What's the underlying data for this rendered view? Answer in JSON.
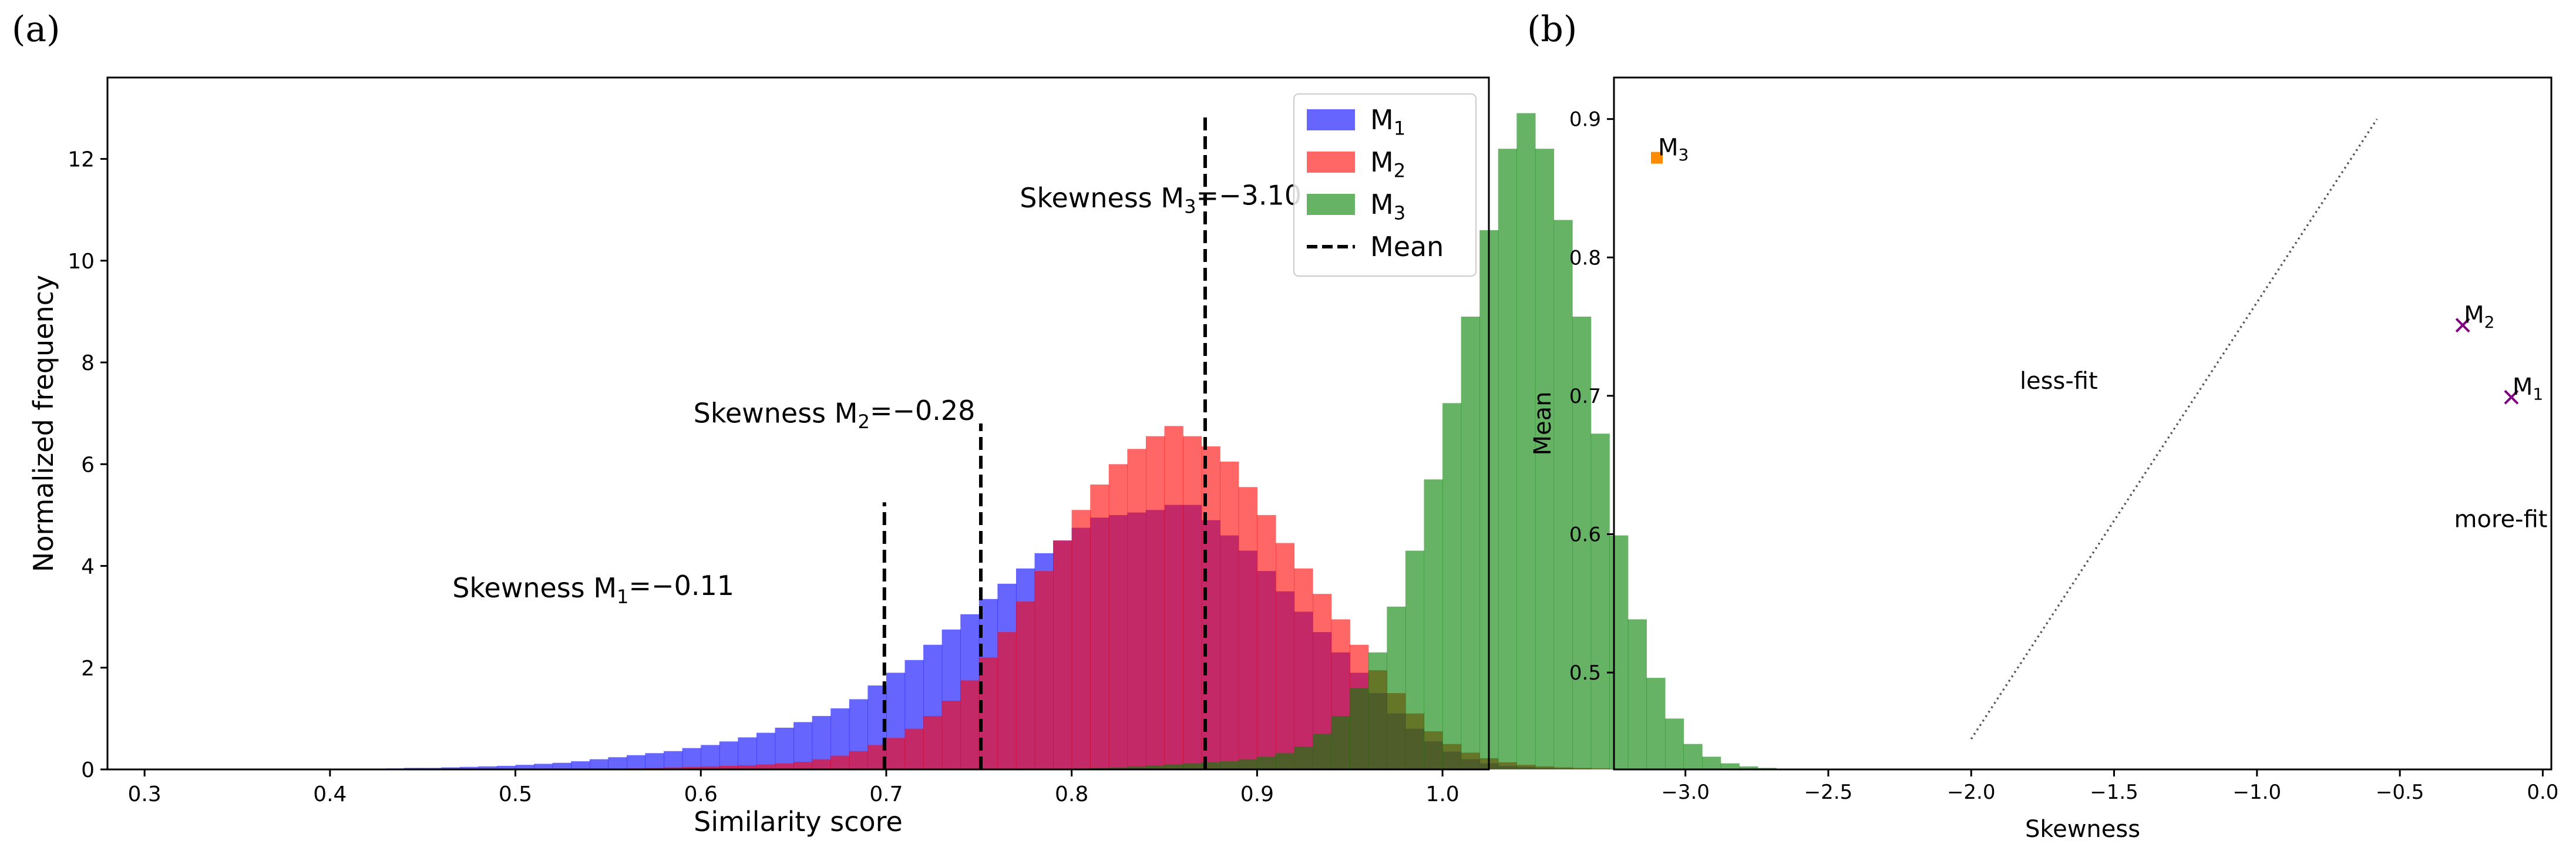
{
  "chart_data": [
    {
      "panel": "(a)",
      "type": "histogram",
      "xlabel": "Similarity score",
      "ylabel": "Normalized frequency",
      "xlim": [
        0.28,
        1.025
      ],
      "ylim": [
        0,
        13.6
      ],
      "xticks": [
        0.3,
        0.4,
        0.5,
        0.6,
        0.7,
        0.8,
        0.9,
        1.0
      ],
      "xtick_labels": [
        "0.3",
        "0.4",
        "0.5",
        "0.6",
        "0.7",
        "0.8",
        "0.9",
        "1.0"
      ],
      "yticks": [
        0,
        2,
        4,
        6,
        8,
        10,
        12
      ],
      "ytick_labels": [
        "0",
        "2",
        "4",
        "6",
        "8",
        "10",
        "12"
      ],
      "bin_width": 0.01,
      "bin_start": 0.3,
      "series": [
        {
          "name": "M1",
          "name_base": "M",
          "name_sub": "1",
          "color": "#0000ff",
          "opacity": 0.6,
          "values": [
            0,
            0,
            0,
            0,
            0,
            0,
            0,
            0,
            0,
            0,
            0,
            0,
            0,
            0.02,
            0.03,
            0.03,
            0.04,
            0.05,
            0.06,
            0.07,
            0.09,
            0.11,
            0.13,
            0.16,
            0.2,
            0.24,
            0.28,
            0.32,
            0.36,
            0.42,
            0.48,
            0.55,
            0.63,
            0.72,
            0.82,
            0.93,
            1.05,
            1.2,
            1.38,
            1.65,
            1.9,
            2.15,
            2.45,
            2.75,
            3.05,
            3.35,
            3.65,
            3.95,
            4.25,
            4.5,
            4.75,
            4.95,
            5.0,
            5.05,
            5.1,
            5.2,
            5.2,
            4.9,
            4.6,
            4.3,
            3.9,
            3.5,
            3.1,
            2.7,
            2.3,
            1.9,
            1.5,
            1.1,
            0.8,
            0.55,
            0.35,
            0.2,
            0.12,
            0.07,
            0.05,
            0.03,
            0.02,
            0.01,
            0,
            0,
            0,
            0,
            0,
            0,
            0,
            0,
            0,
            0,
            0,
            0,
            0,
            0,
            0,
            0,
            0,
            0,
            0,
            0,
            0,
            0
          ],
          "mean": 0.699,
          "mean_line_top": 5.25,
          "skewness_label": "Skewness M₁=−0.11",
          "skewness_base": "Skewness M",
          "skewness_sub": "1",
          "skewness_value": "=−0.11"
        },
        {
          "name": "M2",
          "name_base": "M",
          "name_sub": "2",
          "color": "#ff0000",
          "opacity": 0.6,
          "values": [
            0,
            0,
            0,
            0,
            0,
            0,
            0,
            0,
            0,
            0,
            0,
            0,
            0,
            0,
            0,
            0,
            0,
            0,
            0,
            0,
            0,
            0,
            0,
            0,
            0,
            0,
            0.02,
            0.03,
            0.04,
            0.05,
            0.06,
            0.07,
            0.08,
            0.1,
            0.12,
            0.15,
            0.2,
            0.27,
            0.36,
            0.48,
            0.62,
            0.8,
            1.05,
            1.35,
            1.75,
            2.2,
            2.7,
            3.3,
            3.9,
            4.5,
            5.1,
            5.6,
            6.0,
            6.3,
            6.55,
            6.75,
            6.55,
            6.35,
            6.05,
            5.55,
            5.0,
            4.45,
            3.95,
            3.45,
            2.95,
            2.45,
            1.95,
            1.5,
            1.1,
            0.75,
            0.5,
            0.33,
            0.22,
            0.14,
            0.09,
            0.06,
            0.04,
            0.03,
            0.02,
            0.01,
            0,
            0,
            0,
            0,
            0,
            0,
            0,
            0,
            0,
            0,
            0,
            0,
            0,
            0,
            0,
            0,
            0,
            0,
            0,
            0
          ],
          "mean": 0.751,
          "mean_line_top": 6.8,
          "skewness_label": "Skewness M₂=−0.28",
          "skewness_base": "Skewness M",
          "skewness_sub": "2",
          "skewness_value": "=−0.28"
        },
        {
          "name": "M3",
          "name_base": "M",
          "name_sub": "3",
          "color": "#008000",
          "opacity": 0.6,
          "values": [
            0,
            0,
            0,
            0,
            0,
            0,
            0,
            0,
            0,
            0,
            0,
            0,
            0,
            0,
            0,
            0,
            0,
            0,
            0,
            0,
            0,
            0,
            0,
            0,
            0,
            0,
            0,
            0,
            0,
            0,
            0,
            0,
            0,
            0,
            0,
            0,
            0,
            0,
            0,
            0,
            0,
            0,
            0,
            0,
            0,
            0,
            0,
            0,
            0,
            0,
            0.02,
            0.03,
            0.04,
            0.06,
            0.08,
            0.1,
            0.12,
            0.14,
            0.16,
            0.2,
            0.25,
            0.32,
            0.45,
            0.7,
            1.05,
            1.6,
            2.3,
            3.2,
            4.3,
            5.7,
            7.2,
            8.9,
            10.6,
            12.2,
            12.9,
            12.2,
            10.8,
            8.9,
            6.6,
            4.6,
            2.95,
            1.8,
            1.0,
            0.5,
            0.25,
            0.12,
            0.06,
            0.03,
            0.01,
            0,
            0,
            0,
            0,
            0,
            0,
            0,
            0,
            0,
            0,
            0
          ],
          "mean": 0.872,
          "mean_line_top": 12.85,
          "skewness_label": "Skewness M₃=−3.10",
          "skewness_base": "Skewness M",
          "skewness_sub": "3",
          "skewness_value": "=−3.10"
        }
      ],
      "legend": {
        "placement": "top-right",
        "entries": [
          {
            "label": "M1",
            "base": "M",
            "sub": "1",
            "kind": "patch",
            "color": "#0000ff"
          },
          {
            "label": "M2",
            "base": "M",
            "sub": "2",
            "kind": "patch",
            "color": "#ff0000"
          },
          {
            "label": "M3",
            "base": "M",
            "sub": "3",
            "kind": "patch",
            "color": "#008000"
          },
          {
            "label": "Mean",
            "base": "Mean",
            "sub": "",
            "kind": "dashed-line",
            "color": "#000000"
          }
        ]
      },
      "annotations": [
        {
          "series": 2,
          "x": 0.772,
          "y": 11.05
        },
        {
          "series": 1,
          "x": 0.596,
          "y": 6.82
        },
        {
          "series": 0,
          "x": 0.466,
          "y": 3.38
        }
      ]
    },
    {
      "panel": "(b)",
      "type": "scatter",
      "xlabel": "Skewness",
      "ylabel": "Mean",
      "xlim": [
        -3.25,
        0.03
      ],
      "ylim": [
        0.43,
        0.93
      ],
      "xticks": [
        -3.0,
        -2.5,
        -2.0,
        -1.5,
        -1.0,
        -0.5,
        0.0
      ],
      "xtick_labels": [
        "−3.0",
        "−2.5",
        "−2.0",
        "−1.5",
        "−1.0",
        "−0.5",
        "0.0"
      ],
      "yticks": [
        0.5,
        0.6,
        0.7,
        0.8,
        0.9
      ],
      "ytick_labels": [
        "0.5",
        "0.6",
        "0.7",
        "0.8",
        "0.9"
      ],
      "points": [
        {
          "label": "M3",
          "base": "M",
          "sub": "3",
          "x": -3.1,
          "y": 0.872,
          "marker": "square",
          "color": "#ff8c00"
        },
        {
          "label": "M2",
          "base": "M",
          "sub": "2",
          "x": -0.28,
          "y": 0.751,
          "marker": "x",
          "color": "#800080"
        },
        {
          "label": "M1",
          "base": "M",
          "sub": "1",
          "x": -0.11,
          "y": 0.699,
          "marker": "x",
          "color": "#800080"
        }
      ],
      "line": {
        "style": "dotted",
        "color": "#555555",
        "points": [
          [
            -2.0,
            0.452
          ],
          [
            -0.58,
            0.9
          ]
        ]
      },
      "annotations": [
        {
          "text": "less-fit",
          "x": -1.83,
          "y": 0.705
        },
        {
          "text": "more-fit",
          "x": -0.31,
          "y": 0.605
        }
      ]
    }
  ]
}
